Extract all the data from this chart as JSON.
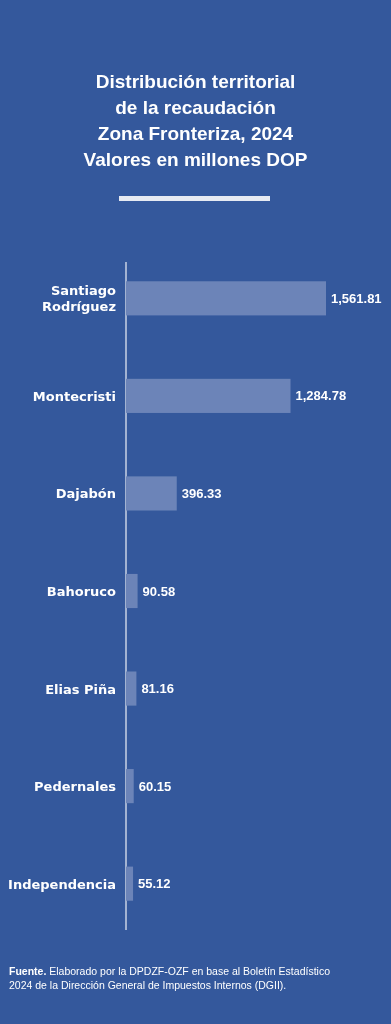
{
  "chart_data": {
    "type": "bar",
    "orientation": "horizontal",
    "title": "Distribución territorial\nde la recaudación\nZona Fronteriza, 2024\nValores en millones DOP",
    "categories": [
      "Santiago Rodríguez",
      "Montecristi",
      "Dajabón",
      "Bahoruco",
      "Elias Piña",
      "Pedernales",
      "Independencia"
    ],
    "values": [
      1561.81,
      1284.78,
      396.33,
      90.58,
      81.16,
      60.15,
      55.12
    ],
    "value_labels": [
      "1,561.81",
      "1,284.78",
      "396.33",
      "90.58",
      "81.16",
      "60.15",
      "55.12"
    ],
    "color": "#6c84b8",
    "annotations": [
      "Fuente. Elaborado por la DPDZF-OZF en base al Boletín Estadístico\n2024 de la Dirección General de Impuestos Internos (DGII)."
    ]
  }
}
